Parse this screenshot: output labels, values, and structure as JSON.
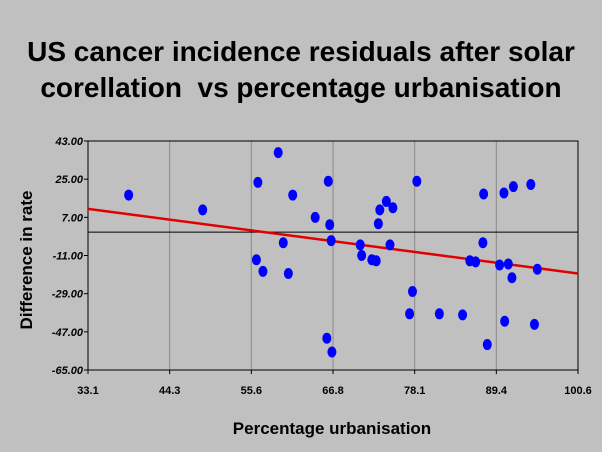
{
  "chart_data": {
    "type": "scatter",
    "title_line1": "US cancer incidence residuals after solar",
    "title_line2": "corellation  vs percentage urbanisation",
    "xlabel": "Percentage urbanisation",
    "ylabel": "Difference in rate",
    "xlim": [
      33.1,
      100.6
    ],
    "ylim": [
      -65.0,
      43.0
    ],
    "xticks": [
      "33.1",
      "44.3",
      "55.6",
      "66.8",
      "78.1",
      "89.4",
      "100.6"
    ],
    "yticks": [
      "43.00",
      "25.00",
      "7.00",
      "-11.00",
      "-29.00",
      "-47.00",
      "-65.00"
    ],
    "grid": "vertical",
    "point_color": "#0000ff",
    "trend_color": "#e00000",
    "zero_line": 0,
    "trend": {
      "x": [
        33.1,
        100.6
      ],
      "y": [
        11.0,
        -19.5
      ]
    },
    "points": [
      {
        "x": 38.7,
        "y": 17.5
      },
      {
        "x": 48.9,
        "y": 10.5
      },
      {
        "x": 56.3,
        "y": -13.0
      },
      {
        "x": 56.5,
        "y": 23.5
      },
      {
        "x": 57.2,
        "y": -18.5
      },
      {
        "x": 59.3,
        "y": 37.5
      },
      {
        "x": 60.0,
        "y": -5.0
      },
      {
        "x": 60.7,
        "y": -19.5
      },
      {
        "x": 61.3,
        "y": 17.5
      },
      {
        "x": 64.4,
        "y": 7.0
      },
      {
        "x": 66.0,
        "y": -50.0
      },
      {
        "x": 66.2,
        "y": 24.0
      },
      {
        "x": 66.4,
        "y": 3.5
      },
      {
        "x": 66.6,
        "y": -4.0
      },
      {
        "x": 66.7,
        "y": -56.5
      },
      {
        "x": 70.6,
        "y": -6.0
      },
      {
        "x": 70.8,
        "y": -11.0
      },
      {
        "x": 72.2,
        "y": -13.0
      },
      {
        "x": 72.8,
        "y": -13.5
      },
      {
        "x": 73.1,
        "y": 4.0
      },
      {
        "x": 73.3,
        "y": 10.5
      },
      {
        "x": 74.2,
        "y": 14.5
      },
      {
        "x": 74.7,
        "y": -6.0
      },
      {
        "x": 75.1,
        "y": 11.5
      },
      {
        "x": 77.4,
        "y": -38.5
      },
      {
        "x": 77.8,
        "y": -28.0
      },
      {
        "x": 78.4,
        "y": 24.0
      },
      {
        "x": 81.5,
        "y": -38.5
      },
      {
        "x": 84.7,
        "y": -39.0
      },
      {
        "x": 85.7,
        "y": -13.5
      },
      {
        "x": 86.5,
        "y": -14.0
      },
      {
        "x": 87.5,
        "y": -5.0
      },
      {
        "x": 87.6,
        "y": 18.0
      },
      {
        "x": 88.1,
        "y": -53.0
      },
      {
        "x": 89.8,
        "y": -15.5
      },
      {
        "x": 90.4,
        "y": 18.5
      },
      {
        "x": 90.5,
        "y": -42.0
      },
      {
        "x": 91.0,
        "y": -15.0
      },
      {
        "x": 91.5,
        "y": -21.5
      },
      {
        "x": 91.7,
        "y": 21.5
      },
      {
        "x": 94.1,
        "y": 22.5
      },
      {
        "x": 94.6,
        "y": -43.5
      },
      {
        "x": 95.0,
        "y": -17.5
      }
    ]
  }
}
